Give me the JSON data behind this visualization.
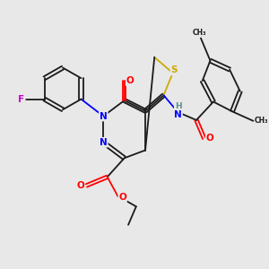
{
  "bg_color": "#e8e8e8",
  "bond_color": "#1a1a1a",
  "colors": {
    "N": "#0000ff",
    "O": "#ff0000",
    "S": "#ccaa00",
    "F": "#cc00cc",
    "H": "#5a9090",
    "C": "#1a1a1a"
  }
}
